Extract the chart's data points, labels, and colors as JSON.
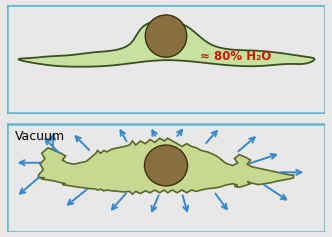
{
  "top_bg": "#ddd8b8",
  "bottom_bg": "#ffffff",
  "top_cell_fill": "#c8e0a0",
  "top_cell_stroke": "#3a5020",
  "bottom_cell_fill": "#c8d890",
  "bottom_cell_stroke": "#5a6828",
  "nucleus_fill": "#8a7040",
  "nucleus_stroke": "#3a3010",
  "border_color": "#60b8d0",
  "arrow_color": "#3a88cc",
  "vacuum_text": "Vacuum",
  "water_label": "≈ 80% H₂O",
  "water_color": "#cc1800"
}
